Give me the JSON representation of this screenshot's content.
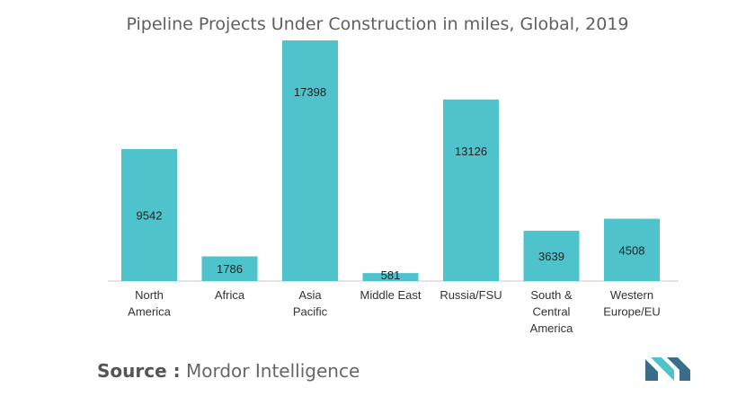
{
  "chart_data": {
    "type": "bar",
    "title": "Pipeline Projects Under Construction in miles, Global, 2019",
    "categories": [
      [
        "North",
        "America"
      ],
      [
        "Africa"
      ],
      [
        "Asia",
        "Pacific"
      ],
      [
        "Middle East"
      ],
      [
        "Russia/FSU"
      ],
      [
        "South &",
        "Central",
        "America"
      ],
      [
        "Western",
        "Europe/EU"
      ]
    ],
    "values": [
      9542,
      1786,
      17398,
      581,
      13126,
      3639,
      4508
    ],
    "value_labels": [
      "9542",
      "1786",
      "17398",
      "581",
      "13126",
      "3639",
      "4508"
    ],
    "bar_color": "#4fc3cb",
    "axis_color": "#c8c8c8"
  },
  "source": {
    "label": "Source :",
    "text": "Mordor Intelligence"
  },
  "logo": {
    "colors": [
      "#3a6d8c",
      "#4fc3cb"
    ]
  }
}
